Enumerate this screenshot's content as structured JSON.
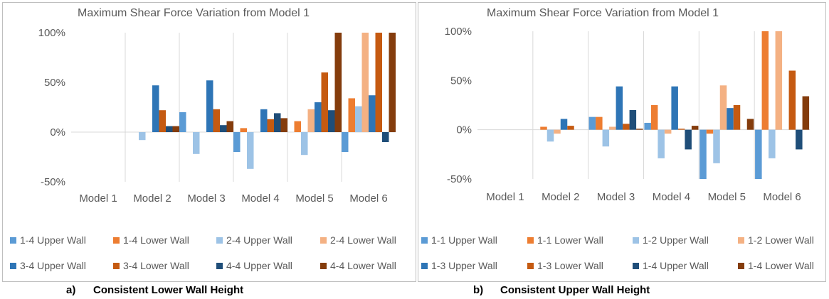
{
  "captions": [
    {
      "label": "a)",
      "text": "Consistent Lower Wall Height"
    },
    {
      "label": "b)",
      "text": "Consistent Upper Wall Height"
    }
  ],
  "chart_data": [
    {
      "type": "bar",
      "title": "Maximum Shear Force Variation from Model 1",
      "xlabel": "",
      "ylabel": "",
      "categories": [
        "Model 1",
        "Model 2",
        "Model 3",
        "Model 4",
        "Model 5",
        "Model 6"
      ],
      "ylim": [
        -0.5,
        1.0
      ],
      "yticks": [
        -0.5,
        0,
        0.5,
        1.0
      ],
      "ytick_labels": [
        "-50%",
        "0%",
        "50%",
        "100%"
      ],
      "grid": "vertical category separators",
      "legend_position": "bottom",
      "series": [
        {
          "name": "1-4 Upper Wall",
          "color": "#5b9bd5",
          "values": [
            0,
            0,
            0.2,
            -0.2,
            0,
            -0.2
          ]
        },
        {
          "name": "1-4 Lower Wall",
          "color": "#ed7d31",
          "values": [
            0,
            0,
            0,
            0.04,
            0.11,
            0.34
          ]
        },
        {
          "name": "2-4 Upper Wall",
          "color": "#9dc3e6",
          "values": [
            0,
            -0.08,
            -0.22,
            -0.37,
            -0.23,
            0.26
          ]
        },
        {
          "name": "2-4 Lower Wall",
          "color": "#f4b183",
          "values": [
            0,
            0,
            0,
            0,
            0.23,
            1.0
          ]
        },
        {
          "name": "3-4 Upper Wall",
          "color": "#2e75b6",
          "values": [
            0,
            0.47,
            0.52,
            0.23,
            0.3,
            0.37
          ]
        },
        {
          "name": "3-4 Lower Wall",
          "color": "#c55a11",
          "values": [
            0,
            0.22,
            0.23,
            0.13,
            0.6,
            1.0
          ]
        },
        {
          "name": "4-4 Upper Wall",
          "color": "#1f4e79",
          "values": [
            0,
            0.06,
            0.07,
            0.19,
            0.22,
            -0.1
          ]
        },
        {
          "name": "4-4 Lower Wall",
          "color": "#843c0c",
          "values": [
            0,
            0.06,
            0.11,
            0.14,
            1.0,
            1.0
          ]
        }
      ]
    },
    {
      "type": "bar",
      "title": "Maximum Shear Force Variation from Model 1",
      "xlabel": "",
      "ylabel": "",
      "categories": [
        "Model 1",
        "Model 2",
        "Model 3",
        "Model 4",
        "Model 5",
        "Model 6"
      ],
      "ylim": [
        -0.5,
        1.0
      ],
      "yticks": [
        -0.5,
        0,
        0.5,
        1.0
      ],
      "ytick_labels": [
        "-50%",
        "0%",
        "50%",
        "100%"
      ],
      "grid": "vertical category separators",
      "legend_position": "bottom",
      "series": [
        {
          "name": "1-1 Upper Wall",
          "color": "#5b9bd5",
          "values": [
            0,
            0,
            0.13,
            0.07,
            -0.5,
            -0.5
          ]
        },
        {
          "name": "1-1 Lower Wall",
          "color": "#ed7d31",
          "values": [
            0,
            0.03,
            0.13,
            0.25,
            -0.04,
            1.0
          ]
        },
        {
          "name": "1-2 Upper Wall",
          "color": "#9dc3e6",
          "values": [
            0,
            -0.12,
            -0.17,
            -0.29,
            -0.34,
            -0.29
          ]
        },
        {
          "name": "1-2 Lower Wall",
          "color": "#f4b183",
          "values": [
            0,
            -0.04,
            0.03,
            -0.04,
            0.45,
            1.0
          ]
        },
        {
          "name": "1-3 Upper Wall",
          "color": "#2e75b6",
          "values": [
            0,
            0.11,
            0.44,
            0.44,
            0.22,
            0
          ]
        },
        {
          "name": "1-3 Lower Wall",
          "color": "#c55a11",
          "values": [
            0,
            0.04,
            0.06,
            0.01,
            0.25,
            0.6
          ]
        },
        {
          "name": "1-4 Upper Wall",
          "color": "#1f4e79",
          "values": [
            0,
            0,
            0.2,
            -0.2,
            0,
            -0.2
          ]
        },
        {
          "name": "1-4 Lower Wall",
          "color": "#843c0c",
          "values": [
            0,
            0,
            0.01,
            0.04,
            0.11,
            0.34
          ]
        }
      ]
    }
  ]
}
